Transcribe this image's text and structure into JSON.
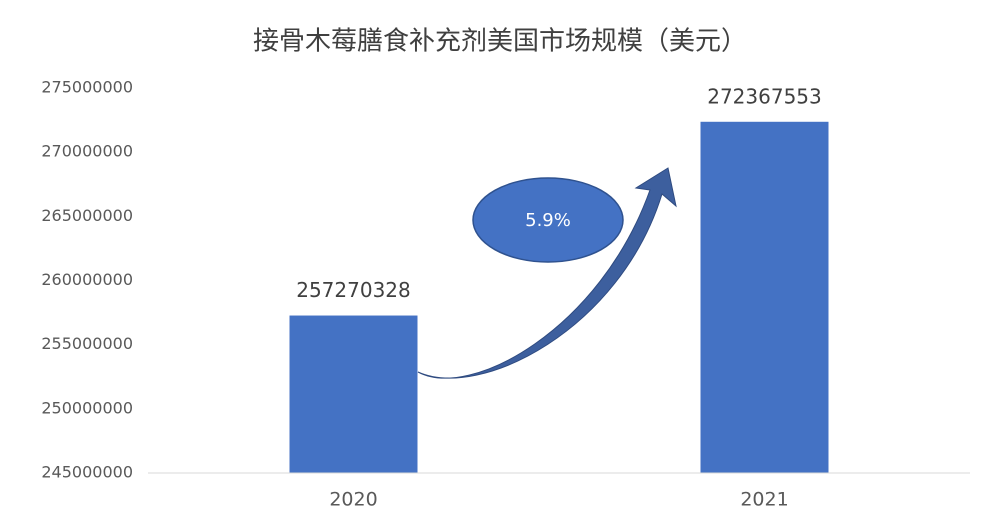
{
  "chart_data": {
    "type": "bar",
    "title": "接骨木莓膳食补充剂美国市场规模（美元）",
    "categories": [
      "2020",
      "2021"
    ],
    "values": [
      257270328,
      272367553
    ],
    "color": "#4472c4",
    "ylim": [
      245000000,
      275000000
    ],
    "yticks": [
      245000000,
      250000000,
      255000000,
      260000000,
      265000000,
      270000000,
      275000000
    ],
    "grid": false,
    "annotation": "5.9%"
  }
}
